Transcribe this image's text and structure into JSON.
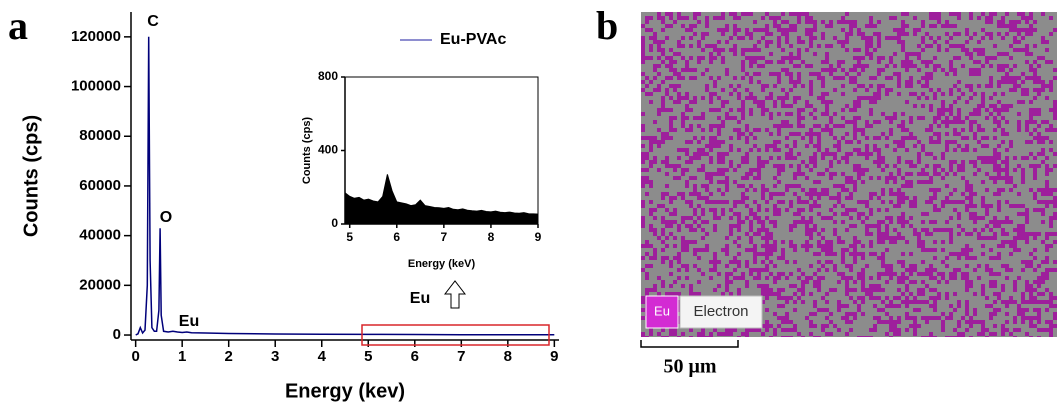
{
  "chart_data": [
    {
      "type": "line",
      "panel_label": "a",
      "x_label": "Energy (kev)",
      "y_label": "Counts (cps)",
      "xlim": [
        -0.1,
        9.1
      ],
      "ylim": [
        -2000,
        130000
      ],
      "xticks": [
        0,
        1,
        2,
        3,
        4,
        5,
        6,
        7,
        8,
        9
      ],
      "yticks": [
        0,
        20000,
        40000,
        60000,
        80000,
        100000,
        120000
      ],
      "peak_labels": [
        "C",
        "O",
        "Eu"
      ],
      "x": [
        0,
        0.05,
        0.1,
        0.15,
        0.2,
        0.25,
        0.28,
        0.31,
        0.35,
        0.4,
        0.45,
        0.5,
        0.525,
        0.55,
        0.6,
        0.7,
        0.8,
        0.9,
        1.0,
        1.1,
        1.2,
        1.5,
        2,
        3,
        4,
        5,
        6,
        7,
        8,
        9
      ],
      "series": [
        {
          "name": "Eu-PVAc",
          "color": "#00007a",
          "values": [
            0,
            500,
            3000,
            800,
            2000,
            20000,
            120000,
            30000,
            3000,
            1500,
            1500,
            10000,
            43000,
            8000,
            1500,
            1200,
            1500,
            1200,
            1000,
            1200,
            900,
            800,
            600,
            400,
            300,
            250,
            200,
            150,
            120,
            100
          ]
        }
      ]
    },
    {
      "type": "area",
      "x_label": "Energy (keV)",
      "y_label": "Counts (cps)",
      "callout": "Eu",
      "xlim": [
        4.9,
        9
      ],
      "ylim": [
        0,
        800
      ],
      "xticks": [
        5,
        6,
        7,
        8,
        9
      ],
      "yticks": [
        0,
        400,
        800
      ],
      "x": [
        4.9,
        5.0,
        5.1,
        5.2,
        5.3,
        5.4,
        5.5,
        5.6,
        5.7,
        5.8,
        5.9,
        6.0,
        6.1,
        6.2,
        6.3,
        6.4,
        6.5,
        6.6,
        6.7,
        6.8,
        6.9,
        7.0,
        7.1,
        7.2,
        7.3,
        7.4,
        7.5,
        7.6,
        7.7,
        7.8,
        7.9,
        8.0,
        8.1,
        8.2,
        8.3,
        8.4,
        8.5,
        8.6,
        8.7,
        8.8,
        8.9,
        9.0
      ],
      "series": [
        {
          "color": "#000000",
          "values": [
            170,
            150,
            140,
            145,
            130,
            135,
            125,
            120,
            150,
            270,
            180,
            120,
            115,
            110,
            100,
            105,
            130,
            100,
            95,
            90,
            88,
            85,
            90,
            80,
            78,
            82,
            75,
            72,
            70,
            74,
            68,
            66,
            70,
            64,
            62,
            65,
            60,
            58,
            62,
            56,
            55,
            54
          ]
        }
      ]
    }
  ],
  "map_panel": {
    "panel_label": "b",
    "legend": [
      "Eu",
      "Electron"
    ],
    "scale_bar": "50 μm"
  }
}
